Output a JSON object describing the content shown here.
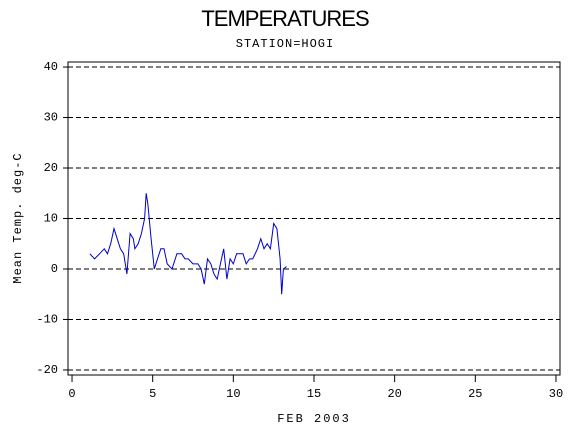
{
  "chart_data": {
    "type": "line",
    "title": "TEMPERATURES",
    "subtitle": "STATION=HOGI",
    "x_label": "FEB 2003",
    "y_label": "Mean Temp. deg-C",
    "x": [
      1.1,
      1.4,
      1.7,
      2.0,
      2.2,
      2.4,
      2.6,
      2.8,
      3.0,
      3.2,
      3.4,
      3.6,
      3.8,
      3.9,
      4.1,
      4.3,
      4.5,
      4.6,
      4.7,
      4.9,
      5.1,
      5.3,
      5.5,
      5.7,
      5.9,
      6.2,
      6.5,
      6.8,
      7.0,
      7.2,
      7.5,
      7.8,
      8.0,
      8.2,
      8.4,
      8.6,
      8.8,
      9.0,
      9.2,
      9.4,
      9.6,
      9.8,
      10.0,
      10.2,
      10.4,
      10.6,
      10.8,
      11.0,
      11.2,
      11.5,
      11.7,
      11.9,
      12.1,
      12.3,
      12.5,
      12.7,
      12.9,
      13.0,
      13.1,
      13.3
    ],
    "series": [
      {
        "name": "Mean Temp",
        "color": "#0000cc",
        "values": [
          3,
          2,
          3,
          4,
          3,
          5,
          8,
          6,
          4,
          3,
          -1,
          7,
          6,
          4,
          5,
          7,
          10,
          15,
          13,
          6,
          0,
          2,
          4,
          4,
          1,
          0,
          3,
          3,
          2,
          2,
          1,
          1,
          0,
          -3,
          2,
          1,
          -1,
          -2,
          1,
          4,
          -2,
          2,
          1,
          3,
          3,
          3,
          1,
          2,
          2,
          4,
          6,
          4,
          5,
          4,
          9,
          8,
          2,
          -5,
          0,
          0.5
        ]
      }
    ],
    "xlim": [
      -0.25,
      30.25
    ],
    "ylim": [
      -21,
      41
    ],
    "xticks": [
      0,
      5,
      10,
      15,
      20,
      25,
      30
    ],
    "yticks": [
      -20,
      -10,
      0,
      10,
      20,
      30,
      40
    ],
    "grid": true
  }
}
